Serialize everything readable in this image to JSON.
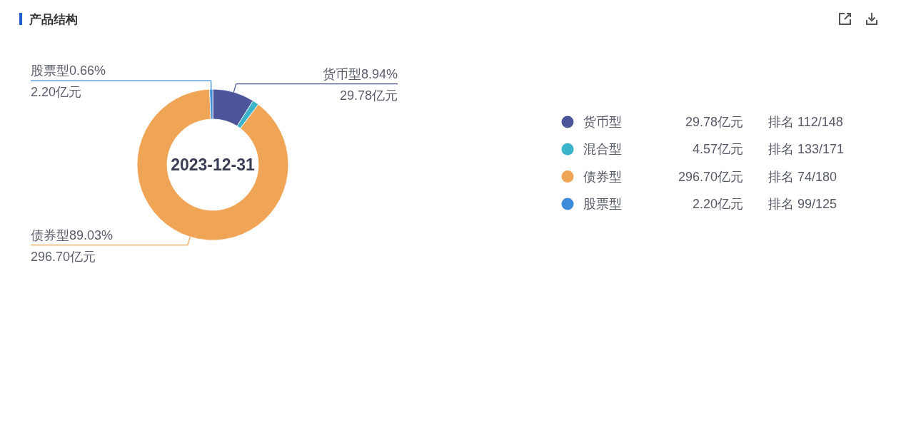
{
  "chart_data": {
    "type": "donut",
    "title": "产品结构",
    "categories": [
      "货币型",
      "混合型",
      "债券型",
      "股票型"
    ],
    "values": [
      29.78,
      4.57,
      296.7,
      2.2
    ],
    "colors": [
      "#4c5599",
      "#3bb3c8",
      "#f0a456",
      "#3d8cd9"
    ],
    "value_labels": [
      "货币型8.94%\n29.78亿元",
      null,
      "债券型89.03%\n296.70亿元",
      "股票型0.66%\n2.20亿元"
    ],
    "annotations": [
      "2023-12-31",
      "29.78亿元",
      "排名 112/148",
      "4.57亿元",
      "排名 133/171",
      "296.70亿元",
      "排名 74/180",
      "2.20亿元",
      "排名 99/125"
    ],
    "legend": "right"
  }
}
